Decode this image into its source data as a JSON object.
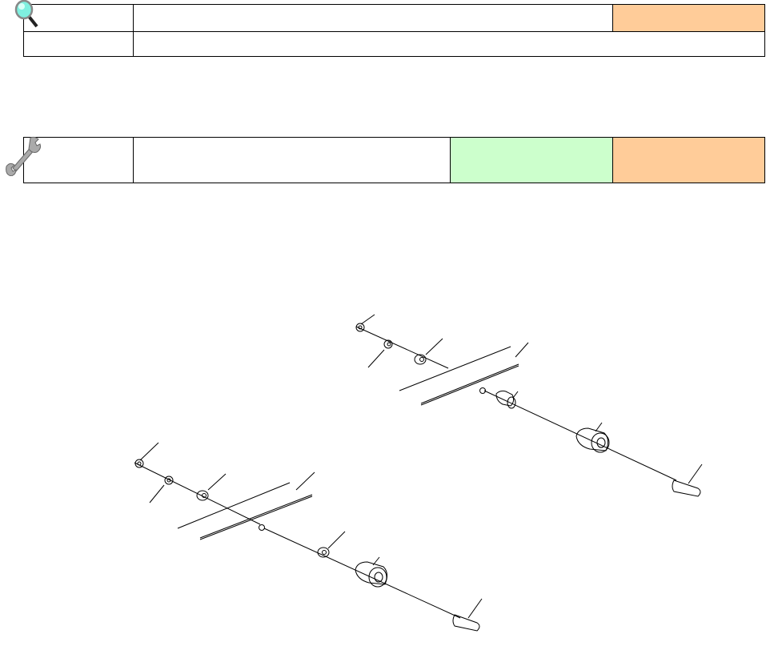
{
  "table_1": {
    "icon": "magnifier-icon",
    "rows": [
      {
        "cells": [
          "",
          "",
          ""
        ]
      },
      {
        "cells": [
          "",
          ""
        ]
      }
    ],
    "highlight_color": "#FFCC99"
  },
  "table_2": {
    "icon": "wrench-icon",
    "rows": [
      {
        "cells": [
          "",
          "",
          "",
          ""
        ]
      }
    ],
    "green_color": "#CCFFCC",
    "orange_color": "#FFCC99"
  },
  "figure": {
    "type": "exploded-assembly-drawing",
    "assemblies": 2
  }
}
